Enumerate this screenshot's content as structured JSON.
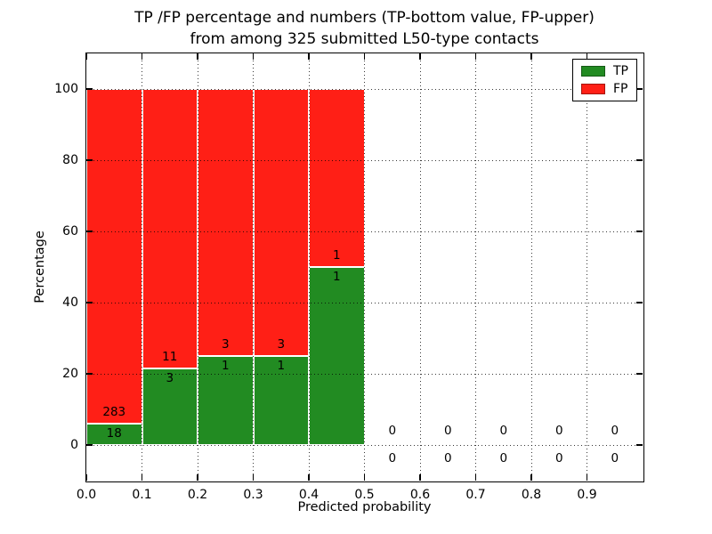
{
  "figure": {
    "title_line1": "TP /FP percentage and numbers (TP-bottom value, FP-upper)",
    "title_line2": "from among 325 submitted L50-type contacts"
  },
  "axes": {
    "xlabel": "Predicted probability",
    "ylabel": "Percentage",
    "xlim": [
      0,
      1
    ],
    "ylim": [
      -10,
      110
    ],
    "xtick_values": [
      0.0,
      0.1,
      0.2,
      0.3,
      0.4,
      0.5,
      0.6,
      0.7,
      0.8,
      0.9
    ],
    "xtick_labels": [
      "0.0",
      "0.1",
      "0.2",
      "0.3",
      "0.4",
      "0.5",
      "0.6",
      "0.7",
      "0.8",
      "0.9"
    ],
    "ytick_values": [
      0,
      20,
      40,
      60,
      80,
      100
    ],
    "ytick_labels": [
      "0",
      "20",
      "40",
      "60",
      "80",
      "100"
    ],
    "grid": "dotted"
  },
  "legend": {
    "position": "upper-right",
    "items": [
      {
        "label": "TP",
        "color": "#228b22"
      },
      {
        "label": "FP",
        "color": "#ff1f16"
      }
    ]
  },
  "colors": {
    "tp": "#228b22",
    "fp": "#ff1f16",
    "bar_edge": "#ffffff",
    "text": "#000000"
  },
  "chart_data": {
    "type": "bar",
    "stacked": true,
    "normalized_to_percent": true,
    "title": "TP /FP percentage and numbers (TP-bottom value, FP-upper) from among 325 submitted L50-type contacts",
    "xlabel": "Predicted probability",
    "ylabel": "Percentage",
    "total_contacts": 325,
    "bin_width": 0.1,
    "bin_starts": [
      0.0,
      0.1,
      0.2,
      0.3,
      0.4,
      0.5,
      0.6,
      0.7,
      0.8,
      0.9
    ],
    "series": [
      {
        "name": "TP",
        "counts": [
          18,
          3,
          1,
          1,
          1,
          0,
          0,
          0,
          0,
          0
        ]
      },
      {
        "name": "FP",
        "counts": [
          283,
          11,
          3,
          3,
          1,
          0,
          0,
          0,
          0,
          0
        ]
      }
    ],
    "tp_percent_by_bin": [
      5.98,
      21.43,
      25.0,
      25.0,
      50.0,
      null,
      null,
      null,
      null,
      null
    ],
    "fp_percent_by_bin": [
      94.02,
      78.57,
      75.0,
      75.0,
      50.0,
      null,
      null,
      null,
      null,
      null
    ]
  }
}
